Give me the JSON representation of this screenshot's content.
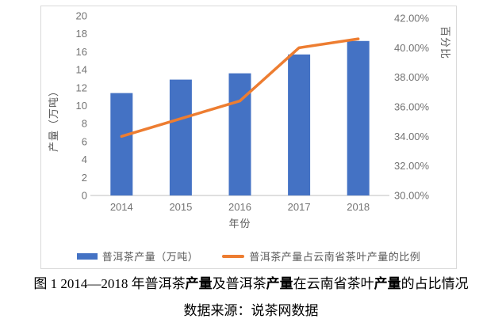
{
  "chart_data": {
    "type": "combo-bar-line",
    "categories": [
      "2014",
      "2015",
      "2016",
      "2017",
      "2018"
    ],
    "series": [
      {
        "name": "普洱茶产量（万吨）",
        "type": "bar",
        "axis": "left",
        "color": "#4472C4",
        "values": [
          11.4,
          12.9,
          13.6,
          15.7,
          17.2
        ]
      },
      {
        "name": "普洱茶产量占云南省茶叶产量的比例",
        "type": "line",
        "axis": "right",
        "color": "#ED7D31",
        "unit": "%",
        "values": [
          34.0,
          35.2,
          36.4,
          40.0,
          40.6
        ]
      }
    ],
    "xlabel": "年份",
    "left_axis": {
      "label": "产量（万吨）",
      "min": 0,
      "max": 20,
      "ticks": [
        "20",
        "18",
        "16",
        "14",
        "12",
        "10",
        "8",
        "6",
        "4",
        "2",
        "0"
      ]
    },
    "right_axis": {
      "label": "百分比",
      "min": 30,
      "max": 42,
      "ticks": [
        "42.00%",
        "40.00%",
        "38.00%",
        "36.00%",
        "34.00%",
        "32.00%",
        "30.00%"
      ]
    },
    "legend_position": "bottom",
    "grid": false,
    "colors": {
      "bar": "#4472C4",
      "line": "#ED7D31",
      "axis_text": "#737373",
      "axis_line": "#BFBFBF",
      "frame_border": "#D9D9D9"
    }
  },
  "figure": {
    "caption_line1_segments": [
      {
        "text": "图 1 2014—2018 年普洱茶",
        "bold": false
      },
      {
        "text": "产量",
        "bold": true
      },
      {
        "text": "及普洱茶",
        "bold": false
      },
      {
        "text": "产量",
        "bold": true
      },
      {
        "text": "在云南省茶叶",
        "bold": false
      },
      {
        "text": "产量",
        "bold": true
      },
      {
        "text": "的占比情况",
        "bold": false
      }
    ],
    "caption_line2": "数据来源：说茶网数据"
  }
}
